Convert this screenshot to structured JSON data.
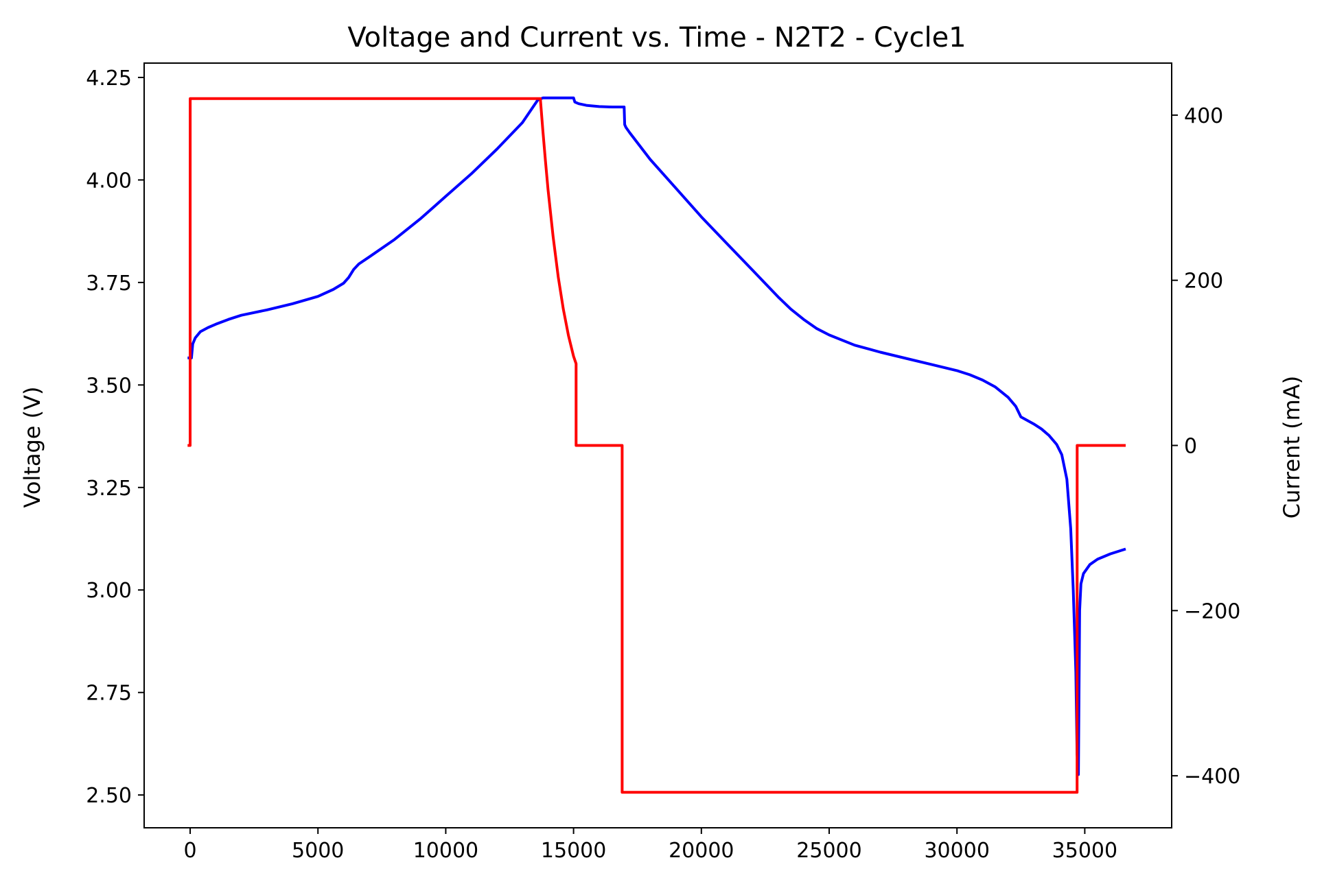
{
  "chart_data": {
    "type": "line",
    "title": "Voltage and Current vs. Time - N2T2 - Cycle1",
    "xlabel": "",
    "ylabel": "Voltage (V)",
    "y2label": "Current (mA)",
    "xlim": [
      -1800,
      38400
    ],
    "ylim": [
      2.42,
      4.285
    ],
    "y2lim": [
      -463,
      463
    ],
    "xticks": [
      0,
      5000,
      10000,
      15000,
      20000,
      25000,
      30000,
      35000
    ],
    "yticks": [
      2.5,
      2.75,
      3.0,
      3.25,
      3.5,
      3.75,
      4.0,
      4.25
    ],
    "ytick_labels": [
      "2.50",
      "2.75",
      "3.00",
      "3.25",
      "3.50",
      "3.75",
      "4.00",
      "4.25"
    ],
    "y2ticks": [
      -400,
      -200,
      0,
      200,
      400
    ],
    "y2tick_labels": [
      "−400",
      "−200",
      "0",
      "200",
      "400"
    ],
    "grid": false,
    "series": [
      {
        "axis": "left",
        "color": "#0000ff",
        "x": [
          -100,
          50,
          100,
          200,
          400,
          700,
          1000,
          1500,
          2000,
          3000,
          4000,
          5000,
          5600,
          6000,
          6200,
          6400,
          6600,
          7000,
          8000,
          9000,
          10000,
          11000,
          12000,
          13000,
          13600,
          13800,
          14200,
          14700,
          14900,
          15000,
          15050,
          15200,
          15500,
          16000,
          16500,
          16980,
          17000,
          17050,
          17200,
          18000,
          19000,
          20000,
          21000,
          22000,
          23000,
          23500,
          24000,
          24500,
          25000,
          26000,
          27000,
          28000,
          29000,
          30000,
          30500,
          31000,
          31500,
          32000,
          32300,
          32500,
          33000,
          33300,
          33600,
          33900,
          34100,
          34300,
          34450,
          34550,
          34650,
          34700,
          34750,
          34800,
          34850,
          34950,
          35200,
          35500,
          36000,
          36600
        ],
        "y": [
          3.566,
          3.566,
          3.6,
          3.615,
          3.63,
          3.64,
          3.648,
          3.66,
          3.67,
          3.683,
          3.698,
          3.716,
          3.733,
          3.748,
          3.762,
          3.782,
          3.795,
          3.812,
          3.855,
          3.905,
          3.96,
          4.015,
          4.075,
          4.14,
          4.195,
          4.2,
          4.2,
          4.2,
          4.2,
          4.2,
          4.19,
          4.186,
          4.182,
          4.179,
          4.178,
          4.178,
          4.135,
          4.128,
          4.115,
          4.05,
          3.98,
          3.91,
          3.845,
          3.78,
          3.715,
          3.685,
          3.66,
          3.638,
          3.622,
          3.597,
          3.58,
          3.565,
          3.55,
          3.535,
          3.525,
          3.512,
          3.495,
          3.47,
          3.448,
          3.422,
          3.405,
          3.393,
          3.377,
          3.355,
          3.33,
          3.27,
          3.15,
          3.0,
          2.8,
          2.6,
          2.55,
          2.95,
          3.015,
          3.04,
          3.062,
          3.075,
          3.088,
          3.1
        ]
      },
      {
        "axis": "right",
        "color": "#ff0000",
        "x": [
          -100,
          0,
          1,
          100,
          2000,
          5000,
          10000,
          13000,
          13600,
          13700,
          13800,
          13900,
          14000,
          14200,
          14400,
          14600,
          14800,
          15000,
          15099,
          15100,
          16000,
          16900,
          16901,
          17000,
          18000,
          20000,
          25000,
          30000,
          34700,
          34701,
          34800,
          35000,
          36600
        ],
        "y": [
          0,
          0,
          420,
          420,
          420,
          420,
          420,
          420,
          420,
          420,
          381,
          345,
          310,
          253,
          204,
          165,
          133,
          108,
          99,
          0,
          0,
          0,
          -420,
          -420,
          -420,
          -420,
          -420,
          -420,
          -420,
          0,
          0,
          0,
          0
        ]
      }
    ]
  }
}
